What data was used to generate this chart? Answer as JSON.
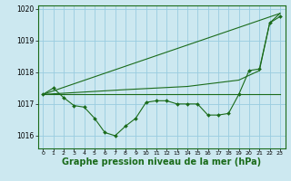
{
  "background_color": "#cce8f0",
  "grid_color": "#99cce0",
  "line_color": "#1a6b1a",
  "marker_color": "#1a6b1a",
  "xlabel": "Graphe pression niveau de la mer (hPa)",
  "xlabel_fontsize": 7,
  "xlim": [
    -0.5,
    23.5
  ],
  "ylim": [
    1015.6,
    1020.1
  ],
  "yticks": [
    1016,
    1017,
    1018,
    1019,
    1020
  ],
  "xticks": [
    0,
    1,
    2,
    3,
    4,
    5,
    6,
    7,
    8,
    9,
    10,
    11,
    12,
    13,
    14,
    15,
    16,
    17,
    18,
    19,
    20,
    21,
    22,
    23
  ],
  "series1_x": [
    0,
    1,
    2,
    3,
    4,
    5,
    6,
    7,
    8,
    9,
    10,
    11,
    12,
    13,
    14,
    15,
    16,
    17,
    18,
    19,
    20,
    21,
    22,
    23
  ],
  "series1_y": [
    1017.3,
    1017.5,
    1017.2,
    1016.95,
    1016.9,
    1016.55,
    1016.1,
    1016.0,
    1016.3,
    1016.55,
    1017.05,
    1017.1,
    1017.1,
    1017.0,
    1017.0,
    1017.0,
    1016.65,
    1016.65,
    1016.7,
    1017.3,
    1018.05,
    1018.1,
    1019.55,
    1019.75
  ],
  "series2_x": [
    0,
    23
  ],
  "series2_y": [
    1017.3,
    1017.3
  ],
  "series3_x": [
    0,
    23
  ],
  "series3_y": [
    1017.3,
    1019.85
  ],
  "series4_x": [
    0,
    8,
    14,
    19,
    21,
    22,
    23
  ],
  "series4_y": [
    1017.3,
    1017.45,
    1017.55,
    1017.75,
    1018.05,
    1019.55,
    1019.85
  ]
}
